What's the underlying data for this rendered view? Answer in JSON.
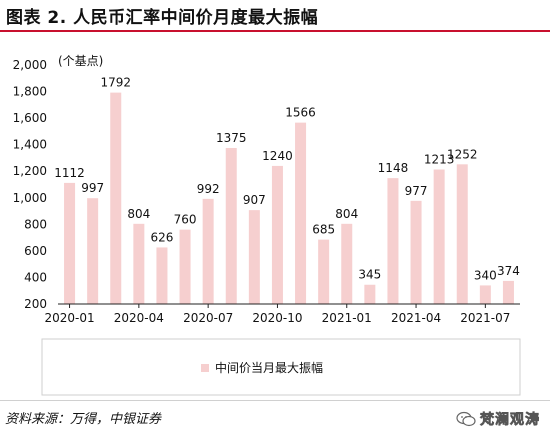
{
  "header": {
    "title": "图表 2. 人民币汇率中间价月度最大振幅"
  },
  "chart_data": {
    "type": "bar",
    "unit_label": "(个基点)",
    "categories": [
      "2020-01",
      "2020-02",
      "2020-03",
      "2020-04",
      "2020-05",
      "2020-06",
      "2020-07",
      "2020-08",
      "2020-09",
      "2020-10",
      "2020-11",
      "2020-12",
      "2021-01",
      "2021-02",
      "2021-03",
      "2021-04",
      "2021-05",
      "2021-06",
      "2021-07",
      "2021-08"
    ],
    "x_tick_labels": [
      "2020-01",
      "2020-04",
      "2020-07",
      "2020-10",
      "2021-01",
      "2021-04",
      "2021-07"
    ],
    "series": [
      {
        "name": "中间价当月最大振幅",
        "values": [
          1112,
          997,
          1792,
          804,
          626,
          760,
          992,
          1375,
          907,
          1240,
          1566,
          685,
          804,
          345,
          1148,
          977,
          1213,
          1252,
          340,
          374
        ],
        "color": "#f6cfcf"
      }
    ],
    "ylim": [
      200,
      2000
    ],
    "yticks": [
      "2,000",
      "1,800",
      "1,600",
      "1,400",
      "1,200",
      "1,000",
      "800",
      "600",
      "400",
      "200"
    ],
    "legend_position": "bottom"
  },
  "footer": {
    "source": "资料来源：万得，中银证券",
    "watermark": "梵澜观涛"
  }
}
